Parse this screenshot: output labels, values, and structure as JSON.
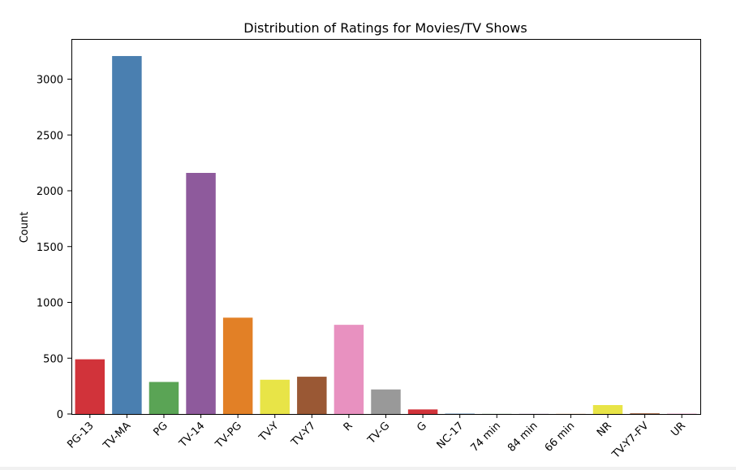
{
  "chart_data": {
    "type": "bar",
    "title": "Distribution of Ratings for Movies/TV Shows",
    "xlabel": "",
    "ylabel": "Count",
    "ylim": [
      0,
      3360
    ],
    "yticks": [
      0,
      500,
      1000,
      1500,
      2000,
      2500,
      3000
    ],
    "grid": false,
    "categories": [
      "PG-13",
      "TV-MA",
      "PG",
      "TV-14",
      "TV-PG",
      "TV-Y",
      "TV-Y7",
      "R",
      "TV-G",
      "G",
      "NC-17",
      "74 min",
      "84 min",
      "66 min",
      "NR",
      "TV-Y7-FV",
      "UR"
    ],
    "values": [
      490,
      3207,
      287,
      2160,
      863,
      307,
      334,
      799,
      220,
      41,
      3,
      1,
      1,
      1,
      80,
      6,
      3
    ],
    "colors": [
      "#d1333a",
      "#4a7fb0",
      "#5aa455",
      "#8e5a9c",
      "#e28026",
      "#e8e447",
      "#9a5834",
      "#e891c0",
      "#999999",
      "#d1333a",
      "#4a7fb0",
      "#5aa455",
      "#8e5a9c",
      "#e28026",
      "#e8e447",
      "#9a5834",
      "#e891c0"
    ]
  }
}
